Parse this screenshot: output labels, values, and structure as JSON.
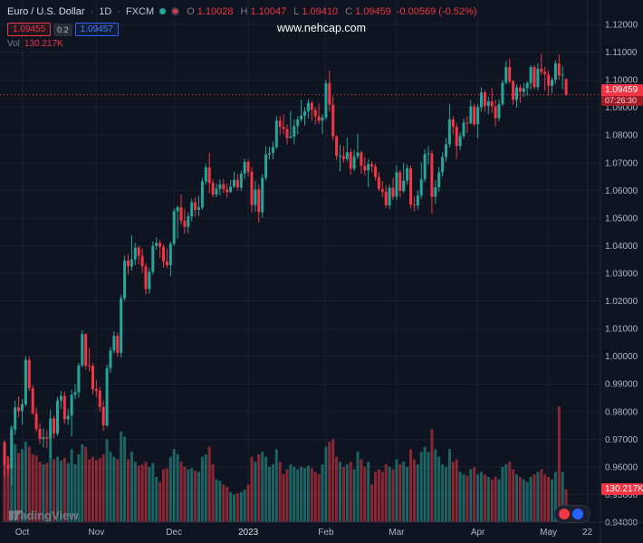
{
  "header": {
    "title": "Euro / U.S. Dollar",
    "sep": "·",
    "interval": "1D",
    "exchange": "FXCM"
  },
  "ohlc": {
    "o_label": "O",
    "o": "1.10028",
    "h_label": "H",
    "h": "1.10047",
    "l_label": "L",
    "l": "1.09410",
    "c_label": "C",
    "c": "1.09459",
    "change": "-0.00569 (-0.52%)"
  },
  "trade": {
    "sell": "1.09455",
    "spread": "0.2",
    "buy": "1.09457"
  },
  "vol": {
    "label": "Vol",
    "value": "130.217K"
  },
  "watermark": "www.nehcap.com",
  "price_label": {
    "price": "1.09459",
    "countdown": "07:26:30"
  },
  "volume_badge": "130.217K",
  "logo_text": "TradingView",
  "colors": {
    "background": "#0e1420",
    "grid": "rgba(170,185,210,0.08)",
    "up": "#26a69a",
    "down": "#f23645",
    "volume_up": "rgba(38,166,154,0.55)",
    "volume_down": "rgba(242,54,69,0.55)",
    "axis_text": "#b2b5be",
    "year_text": "#e0e3e8",
    "label_red_bg": "#f23645",
    "buy_blue": "#2962ff",
    "border": "#242b38"
  },
  "chart_data": {
    "type": "candlestick",
    "title": "Euro / U.S. Dollar · 1D · FXCM",
    "ylim": [
      0.94,
      1.12
    ],
    "last_price": 1.09459,
    "last_volume_k": 130.217,
    "columns": [
      "open",
      "high",
      "low",
      "close",
      "volume_k"
    ],
    "price_axis": {
      "labels": [
        "1.12000",
        "1.11000",
        "1.10000",
        "1.09000",
        "1.08000",
        "1.07000",
        "1.06000",
        "1.05000",
        "1.04000",
        "1.03000",
        "1.02000",
        "1.01000",
        "1.00000",
        "0.99000",
        "0.98000",
        "0.97000",
        "0.96000",
        "0.95000",
        "0.94000"
      ]
    },
    "time_axis": {
      "ticks": [
        {
          "label": "Oct",
          "i": 5
        },
        {
          "label": "Nov",
          "i": 26
        },
        {
          "label": "Dec",
          "i": 48
        },
        {
          "label": "2023",
          "i": 69,
          "major": true
        },
        {
          "label": "Feb",
          "i": 91
        },
        {
          "label": "Mar",
          "i": 111
        },
        {
          "label": "Apr",
          "i": 134
        },
        {
          "label": "May",
          "i": 154
        },
        {
          "label": "22",
          "i": 165
        }
      ]
    },
    "candles": [
      [
        0.969,
        0.9695,
        0.9565,
        0.9608,
        285
      ],
      [
        0.9608,
        0.964,
        0.957,
        0.9594,
        260
      ],
      [
        0.9594,
        0.975,
        0.9536,
        0.9735,
        380
      ],
      [
        0.9735,
        0.984,
        0.9715,
        0.9815,
        310
      ],
      [
        0.9815,
        0.9855,
        0.978,
        0.9802,
        275
      ],
      [
        0.9802,
        0.9845,
        0.9753,
        0.9826,
        290
      ],
      [
        0.9826,
        1.0,
        0.982,
        0.9987,
        320
      ],
      [
        0.9987,
        0.9999,
        0.9875,
        0.9885,
        300
      ],
      [
        0.9885,
        0.9897,
        0.9788,
        0.9793,
        270
      ],
      [
        0.9793,
        0.9816,
        0.9726,
        0.9737,
        265
      ],
      [
        0.9737,
        0.9758,
        0.9682,
        0.9701,
        240
      ],
      [
        0.9701,
        0.974,
        0.967,
        0.9707,
        230
      ],
      [
        0.9707,
        0.9733,
        0.9668,
        0.9703,
        235
      ],
      [
        0.9703,
        0.9807,
        0.9632,
        0.9775,
        370
      ],
      [
        0.9775,
        0.9785,
        0.9704,
        0.9721,
        250
      ],
      [
        0.9721,
        0.9853,
        0.9712,
        0.984,
        260
      ],
      [
        0.984,
        0.9875,
        0.981,
        0.9857,
        245
      ],
      [
        0.9857,
        0.9873,
        0.9756,
        0.9772,
        255
      ],
      [
        0.9772,
        0.981,
        0.9753,
        0.9785,
        235
      ],
      [
        0.9785,
        0.988,
        0.971,
        0.9861,
        290
      ],
      [
        0.9861,
        0.9899,
        0.9845,
        0.987,
        230
      ],
      [
        0.987,
        0.9975,
        0.985,
        0.9967,
        270
      ],
      [
        0.9967,
        1.0094,
        0.996,
        1.008,
        310
      ],
      [
        1.008,
        1.0083,
        0.9952,
        0.9966,
        300
      ],
      [
        0.9966,
        1.003,
        0.9945,
        0.9965,
        250
      ],
      [
        0.9965,
        0.9975,
        0.9862,
        0.9881,
        260
      ],
      [
        0.9881,
        0.9913,
        0.9853,
        0.9875,
        245
      ],
      [
        0.9875,
        0.989,
        0.98,
        0.9817,
        255
      ],
      [
        0.9817,
        0.984,
        0.973,
        0.975,
        270
      ],
      [
        0.975,
        0.997,
        0.9745,
        0.9957,
        330
      ],
      [
        0.9957,
        1.0034,
        0.994,
        1.0021,
        280
      ],
      [
        1.0021,
        1.009,
        1.001,
        1.0074,
        260
      ],
      [
        1.0074,
        1.0086,
        0.9998,
        1.0012,
        250
      ],
      [
        1.0012,
        1.0222,
        0.9995,
        1.021,
        360
      ],
      [
        1.021,
        1.0364,
        1.02,
        1.0346,
        340
      ],
      [
        1.0346,
        1.037,
        1.0296,
        1.0325,
        250
      ],
      [
        1.0325,
        1.0438,
        1.031,
        1.035,
        280
      ],
      [
        1.035,
        1.041,
        1.033,
        1.0393,
        240
      ],
      [
        1.0393,
        1.04,
        1.0333,
        1.0363,
        225
      ],
      [
        1.0363,
        1.039,
        1.0302,
        1.0325,
        230
      ],
      [
        1.0325,
        1.0335,
        1.0223,
        1.0243,
        240
      ],
      [
        1.0243,
        1.032,
        1.0226,
        1.0305,
        220
      ],
      [
        1.0305,
        1.0415,
        1.0295,
        1.0399,
        235
      ],
      [
        1.0399,
        1.043,
        1.0385,
        1.041,
        180
      ],
      [
        1.041,
        1.042,
        1.0355,
        1.0396,
        160
      ],
      [
        1.0396,
        1.0405,
        1.032,
        1.0343,
        210
      ],
      [
        1.0343,
        1.039,
        1.0318,
        1.0329,
        215
      ],
      [
        1.0329,
        1.0415,
        1.029,
        1.0406,
        260
      ],
      [
        1.0406,
        1.0535,
        1.04,
        1.0524,
        290
      ],
      [
        1.0524,
        1.0545,
        1.0427,
        1.0539,
        270
      ],
      [
        1.0539,
        1.0585,
        1.0475,
        1.049,
        240
      ],
      [
        1.049,
        1.0533,
        1.0443,
        1.0468,
        220
      ],
      [
        1.0468,
        1.052,
        1.0445,
        1.0506,
        210
      ],
      [
        1.0506,
        1.057,
        1.0488,
        1.0557,
        215
      ],
      [
        1.0557,
        1.0575,
        1.0505,
        1.053,
        205
      ],
      [
        1.053,
        1.058,
        1.0507,
        1.0538,
        200
      ],
      [
        1.0538,
        1.0645,
        1.053,
        1.0632,
        260
      ],
      [
        1.0632,
        1.0695,
        1.062,
        1.0683,
        270
      ],
      [
        1.0683,
        1.0736,
        1.059,
        1.0627,
        300
      ],
      [
        1.0627,
        1.064,
        1.0575,
        1.0585,
        230
      ],
      [
        1.0585,
        1.0625,
        1.0575,
        1.0606,
        170
      ],
      [
        1.0606,
        1.064,
        1.0583,
        1.0622,
        165
      ],
      [
        1.0622,
        1.064,
        1.059,
        1.0604,
        150
      ],
      [
        1.0604,
        1.0625,
        1.0573,
        1.0594,
        140
      ],
      [
        1.0594,
        1.0637,
        1.059,
        1.0614,
        120
      ],
      [
        1.0614,
        1.0667,
        1.0608,
        1.0638,
        110
      ],
      [
        1.0638,
        1.066,
        1.06,
        1.061,
        115
      ],
      [
        1.061,
        1.0671,
        1.0598,
        1.066,
        120
      ],
      [
        1.066,
        1.0715,
        1.064,
        1.0703,
        130
      ],
      [
        1.0703,
        1.0713,
        1.065,
        1.0667,
        150
      ],
      [
        1.0667,
        1.0683,
        1.052,
        1.0547,
        260
      ],
      [
        1.0547,
        1.0635,
        1.0523,
        1.0603,
        240
      ],
      [
        1.0603,
        1.0621,
        1.0483,
        1.0521,
        270
      ],
      [
        1.0521,
        1.0658,
        1.05,
        1.0645,
        280
      ],
      [
        1.0645,
        1.076,
        1.0635,
        1.073,
        260
      ],
      [
        1.073,
        1.0758,
        1.0711,
        1.0735,
        220
      ],
      [
        1.0735,
        1.0776,
        1.0712,
        1.0756,
        230
      ],
      [
        1.0756,
        1.0868,
        1.075,
        1.0852,
        290
      ],
      [
        1.0852,
        1.087,
        1.08,
        1.083,
        240
      ],
      [
        1.083,
        1.0875,
        1.0803,
        1.0822,
        190
      ],
      [
        1.0822,
        1.0838,
        1.0766,
        1.0789,
        210
      ],
      [
        1.0789,
        1.0887,
        1.0788,
        1.0794,
        230
      ],
      [
        1.0794,
        1.0856,
        1.0766,
        1.0832,
        220
      ],
      [
        1.0832,
        1.0868,
        1.0802,
        1.0856,
        210
      ],
      [
        1.0856,
        1.0927,
        1.0848,
        1.087,
        220
      ],
      [
        1.087,
        1.09,
        1.0835,
        1.0886,
        215
      ],
      [
        1.0886,
        1.093,
        1.086,
        1.0916,
        225
      ],
      [
        1.0916,
        1.0924,
        1.0852,
        1.0891,
        215
      ],
      [
        1.0891,
        1.09,
        1.0838,
        1.0868,
        200
      ],
      [
        1.0868,
        1.0914,
        1.084,
        1.0852,
        190
      ],
      [
        1.0852,
        1.0875,
        1.0803,
        1.0863,
        230
      ],
      [
        1.0863,
        1.1,
        1.0855,
        1.0988,
        300
      ],
      [
        1.0988,
        1.1033,
        1.0885,
        1.091,
        320
      ],
      [
        1.091,
        1.094,
        1.078,
        1.0795,
        330
      ],
      [
        1.0795,
        1.08,
        1.071,
        1.0725,
        260
      ],
      [
        1.0725,
        1.0765,
        1.0669,
        1.0725,
        240
      ],
      [
        1.0725,
        1.076,
        1.07,
        1.0713,
        220
      ],
      [
        1.0713,
        1.0791,
        1.0705,
        1.0738,
        230
      ],
      [
        1.0738,
        1.075,
        1.0656,
        1.0678,
        240
      ],
      [
        1.0678,
        1.0745,
        1.067,
        1.0723,
        210
      ],
      [
        1.0723,
        1.0805,
        1.0713,
        1.0737,
        280
      ],
      [
        1.0737,
        1.0744,
        1.0659,
        1.0689,
        250
      ],
      [
        1.0689,
        1.0721,
        1.0653,
        1.0672,
        220
      ],
      [
        1.0672,
        1.0714,
        1.0612,
        1.0695,
        240
      ],
      [
        1.0695,
        1.0705,
        1.0665,
        1.0686,
        150
      ],
      [
        1.0686,
        1.0697,
        1.0636,
        1.0648,
        200
      ],
      [
        1.0648,
        1.0665,
        1.0598,
        1.0605,
        210
      ],
      [
        1.0605,
        1.0634,
        1.0575,
        1.0595,
        200
      ],
      [
        1.0595,
        1.0618,
        1.0536,
        1.0546,
        230
      ],
      [
        1.0546,
        1.062,
        1.0532,
        1.0609,
        220
      ],
      [
        1.0609,
        1.0645,
        1.0565,
        1.0577,
        210
      ],
      [
        1.0577,
        1.0691,
        1.0565,
        1.0665,
        250
      ],
      [
        1.0665,
        1.0673,
        1.0575,
        1.0598,
        230
      ],
      [
        1.0598,
        1.07,
        1.059,
        1.0635,
        240
      ],
      [
        1.0635,
        1.0694,
        1.062,
        1.068,
        220
      ],
      [
        1.068,
        1.069,
        1.0534,
        1.0548,
        290
      ],
      [
        1.0548,
        1.0578,
        1.0524,
        1.0545,
        250
      ],
      [
        1.0545,
        1.06,
        1.0529,
        1.0581,
        230
      ],
      [
        1.0581,
        1.0701,
        1.057,
        1.064,
        280
      ],
      [
        1.064,
        1.0749,
        1.063,
        1.0731,
        300
      ],
      [
        1.0731,
        1.076,
        1.0693,
        1.0734,
        280
      ],
      [
        1.0734,
        1.0745,
        1.0516,
        1.0577,
        370
      ],
      [
        1.0577,
        1.0636,
        1.0551,
        1.0611,
        290
      ],
      [
        1.0611,
        1.0685,
        1.0595,
        1.0665,
        260
      ],
      [
        1.0665,
        1.0737,
        1.065,
        1.072,
        230
      ],
      [
        1.072,
        1.0789,
        1.0705,
        1.0767,
        220
      ],
      [
        1.0767,
        1.0912,
        1.0755,
        1.0857,
        290
      ],
      [
        1.0857,
        1.0869,
        1.0803,
        1.083,
        240
      ],
      [
        1.083,
        1.0843,
        1.0714,
        1.076,
        250
      ],
      [
        1.076,
        1.081,
        1.0745,
        1.0796,
        200
      ],
      [
        1.0796,
        1.086,
        1.0787,
        1.0845,
        190
      ],
      [
        1.0845,
        1.0868,
        1.0807,
        1.0843,
        185
      ],
      [
        1.0843,
        1.0926,
        1.0838,
        1.0904,
        210
      ],
      [
        1.0904,
        1.0913,
        1.0831,
        1.0839,
        220
      ],
      [
        1.0839,
        1.0913,
        1.0788,
        1.0901,
        190
      ],
      [
        1.0901,
        1.0973,
        1.0885,
        1.0954,
        200
      ],
      [
        1.0954,
        1.0963,
        1.0884,
        1.0905,
        190
      ],
      [
        1.0905,
        1.0938,
        1.0876,
        1.0922,
        180
      ],
      [
        1.0922,
        1.097,
        1.088,
        1.0904,
        170
      ],
      [
        1.0904,
        1.0928,
        1.0832,
        1.0861,
        180
      ],
      [
        1.0861,
        1.0929,
        1.085,
        1.0912,
        170
      ],
      [
        1.0912,
        1.1,
        1.0905,
        1.0989,
        220
      ],
      [
        1.0989,
        1.1068,
        1.0983,
        1.1046,
        230
      ],
      [
        1.1046,
        1.1076,
        1.0987,
        1.0994,
        240
      ],
      [
        1.0994,
        1.1,
        1.091,
        1.0927,
        210
      ],
      [
        1.0927,
        1.0984,
        1.0899,
        1.0972,
        190
      ],
      [
        1.0972,
        1.0982,
        1.0917,
        1.0956,
        180
      ],
      [
        1.0956,
        1.0988,
        1.0938,
        1.097,
        170
      ],
      [
        1.097,
        1.0995,
        1.0941,
        1.0988,
        160
      ],
      [
        1.0988,
        1.1053,
        1.0963,
        1.1046,
        180
      ],
      [
        1.1046,
        1.1052,
        1.0965,
        1.0973,
        190
      ],
      [
        1.0973,
        1.106,
        1.0962,
        1.104,
        200
      ],
      [
        1.104,
        1.1095,
        1.1017,
        1.1029,
        210
      ],
      [
        1.1029,
        1.1047,
        1.0961,
        1.1019,
        190
      ],
      [
        1.1019,
        1.1032,
        1.0942,
        1.0978,
        180
      ],
      [
        1.0978,
        1.1008,
        1.0951,
        1.1,
        170
      ],
      [
        1.1,
        1.1071,
        1.0986,
        1.1059,
        200
      ],
      [
        1.1059,
        1.1091,
        1.0999,
        1.1015,
        460
      ],
      [
        1.1015,
        1.105,
        1.0966,
        1.1018,
        200
      ],
      [
        1.10028,
        1.10047,
        1.0941,
        1.09459,
        130.217
      ]
    ]
  }
}
